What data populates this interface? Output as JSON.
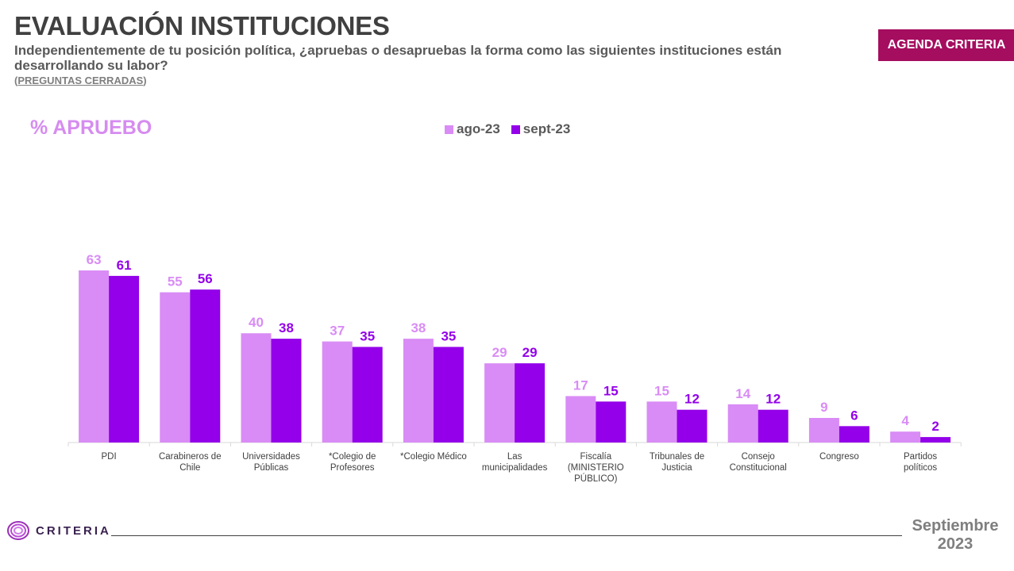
{
  "header": {
    "title": "EVALUACIÓN INSTITUCIONES",
    "subtitle": "Independientemente de tu posición política, ¿apruebas o desapruebas la forma como las siguientes instituciones están desarrollando su labor?",
    "note_open": "(",
    "note_text": "PREGUNTAS CERRADAS",
    "note_close": ")",
    "badge": "AGENDA CRITERIA"
  },
  "metric_label": "% APRUEBO",
  "colors": {
    "ago": "#d98cf5",
    "sept": "#9300e9",
    "badge": "#a50d5f"
  },
  "chart_data": {
    "type": "bar",
    "title": "",
    "xlabel": "",
    "ylabel": "",
    "categories": [
      [
        "PDI"
      ],
      [
        "Carabineros de",
        "Chile"
      ],
      [
        "Universidades",
        "Públicas"
      ],
      [
        "*Colegio de",
        "Profesores"
      ],
      [
        "*Colegio Médico"
      ],
      [
        "Las",
        "municipalidades"
      ],
      [
        "Fiscalía",
        "(MINISTERIO",
        "PÚBLICO)"
      ],
      [
        "Tribunales de",
        "Justicia"
      ],
      [
        "Consejo",
        "Constitucional"
      ],
      [
        "Congreso"
      ],
      [
        "Partidos",
        "políticos"
      ]
    ],
    "series": [
      {
        "name": "ago-23",
        "values": [
          63,
          55,
          40,
          37,
          38,
          29,
          17,
          15,
          14,
          9,
          4
        ]
      },
      {
        "name": "sept-23",
        "values": [
          61,
          56,
          38,
          35,
          35,
          29,
          15,
          12,
          12,
          6,
          2
        ]
      }
    ],
    "ylim": [
      0,
      63
    ],
    "legend_position": "top",
    "grid": false,
    "data_labels": true
  },
  "footer": {
    "logo_text": "CRITERIA",
    "date_line1": "Septiembre",
    "date_line2": "2023"
  }
}
